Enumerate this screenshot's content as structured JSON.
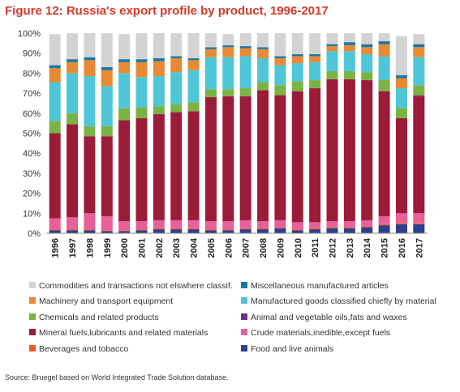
{
  "chart_data": {
    "type": "bar",
    "stacked": true,
    "title": "Figure 12: Russia's export profile by product, 1996-2017",
    "xlabel": "",
    "ylabel": "",
    "ylim": [
      0,
      100
    ],
    "y_tick_labels": [
      "0%",
      "10%",
      "20%",
      "30%",
      "40%",
      "50%",
      "60%",
      "70%",
      "80%",
      "90%",
      "100%"
    ],
    "grid": false,
    "legend_position": "bottom",
    "categories": [
      "1996",
      "1997",
      "1998",
      "1999",
      "2000",
      "2001",
      "2002",
      "2003",
      "2004",
      "2005",
      "2006",
      "2007",
      "2008",
      "2009",
      "2010",
      "2011",
      "2012",
      "2013",
      "2014",
      "2015",
      "2016",
      "2017"
    ],
    "series": [
      {
        "name": "Food and live animals",
        "color": "#2e3f8f",
        "values": [
          1.5,
          1.5,
          1.5,
          1,
          1,
          1.5,
          2,
          2,
          2,
          1.5,
          1.5,
          2,
          2,
          2.5,
          1.5,
          2,
          2.5,
          2.5,
          3,
          4,
          4.5,
          4.5
        ]
      },
      {
        "name": "Beverages and tobacco",
        "color": "#f05a28",
        "values": [
          0.5,
          0.5,
          0.5,
          0.5,
          0.5,
          0.5,
          0.5,
          0.5,
          0.5,
          0.5,
          0.5,
          0.5,
          0.5,
          0.5,
          0.5,
          0.5,
          0.5,
          0.5,
          0.5,
          0.5,
          0.5,
          0.5
        ]
      },
      {
        "name": "Crude materials,inedible,except fuels",
        "color": "#e8609a",
        "values": [
          5.5,
          6,
          8,
          7,
          4.5,
          4,
          4,
          4,
          4,
          4,
          4,
          4,
          3.5,
          3.5,
          3.5,
          3,
          3,
          3,
          3,
          4,
          5,
          5
        ]
      },
      {
        "name": "Mineral fuels,lubricants and related materials",
        "color": "#9b1b3a",
        "values": [
          42.5,
          46.5,
          38.5,
          40,
          50.5,
          51.5,
          53,
          54,
          54.5,
          62,
          62.5,
          62,
          65.5,
          62.5,
          65.5,
          67,
          71,
          71,
          70,
          62.5,
          47.5,
          58.5
        ]
      },
      {
        "name": "Animal and vegetable oils,fats and waxes",
        "color": "#6f2e8a",
        "values": [
          0,
          0,
          0,
          0,
          0,
          0,
          0,
          0,
          0,
          0,
          0,
          0,
          0,
          0,
          0,
          0,
          0,
          0,
          0,
          0,
          0,
          0.5
        ]
      },
      {
        "name": "Chemicals and related products",
        "color": "#7ab342",
        "values": [
          6,
          5.5,
          5,
          5,
          6,
          5.5,
          4,
          4,
          4.5,
          4,
          3.5,
          4,
          4,
          5,
          5,
          4,
          4,
          4,
          4,
          5.5,
          5,
          5
        ]
      },
      {
        "name": "Manufactured goods classified chiefly by material",
        "color": "#4ec6d8",
        "values": [
          19.5,
          20,
          25,
          20,
          17.5,
          15,
          15,
          16,
          16,
          16,
          16,
          16,
          12,
          10,
          9,
          9,
          10,
          10,
          9,
          12,
          10,
          14
        ]
      },
      {
        "name": "Machinery and transport equipment",
        "color": "#e88a34",
        "values": [
          7,
          5.5,
          8,
          8,
          5.5,
          7.5,
          7.5,
          7,
          5,
          4,
          5,
          4,
          4.5,
          3.5,
          3.5,
          3,
          2.5,
          3,
          3.5,
          6,
          5,
          5
        ]
      },
      {
        "name": "Miscellaneous manufactured articles",
        "color": "#1a77a3",
        "values": [
          1.5,
          1.5,
          1.5,
          1.5,
          1.5,
          1.5,
          1.5,
          1,
          1,
          1,
          1,
          1,
          1,
          1,
          1,
          1,
          1,
          1.5,
          1.5,
          1.5,
          1.5,
          1.5
        ]
      },
      {
        "name": "Commodities and transactions not elswhere classif.",
        "color": "#d3d3d3",
        "values": [
          15.5,
          13,
          12,
          17,
          12.5,
          13,
          12.5,
          11.5,
          12.5,
          7,
          5.5,
          6.5,
          7,
          11.5,
          10.5,
          10.5,
          5.5,
          4.5,
          5.5,
          4,
          19.5,
          5
        ]
      }
    ]
  },
  "legend": [
    {
      "key": "legend_0",
      "name": "Commodities and transactions not elswhere classif.",
      "color": "#d3d3d3"
    },
    {
      "key": "legend_1",
      "name": "Miscellaneous manufactured articles",
      "color": "#1a77a3"
    },
    {
      "key": "legend_2",
      "name": "Machinery and transport equipment",
      "color": "#e88a34"
    },
    {
      "key": "legend_3",
      "name": "Manufactured goods classified chiefly by material",
      "color": "#4ec6d8"
    },
    {
      "key": "legend_4",
      "name": "Chemicals and related products",
      "color": "#7ab342"
    },
    {
      "key": "legend_5",
      "name": "Animal and vegetable oils,fats and waxes",
      "color": "#6f2e8a"
    },
    {
      "key": "legend_6",
      "name": "Mineral fuels,lubricants and related materials",
      "color": "#9b1b3a"
    },
    {
      "key": "legend_7",
      "name": "Crude materials,inedible,except fuels",
      "color": "#e8609a"
    },
    {
      "key": "legend_8",
      "name": "Beverages and tobacco",
      "color": "#f05a28"
    },
    {
      "key": "legend_9",
      "name": "Food and live animals",
      "color": "#2e3f8f"
    }
  ],
  "source": "Source: Bruegel based on World Integrated Trade Solution database."
}
